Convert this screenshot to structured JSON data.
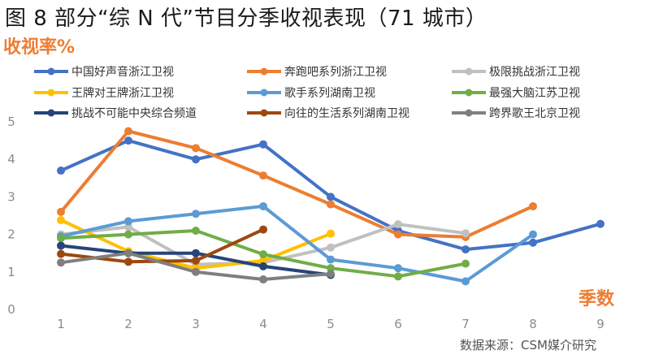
{
  "page": {
    "title": "图 8 部分“综 N 代”节目分季收视表现（71 城市）",
    "source": "数据来源：CSM媒介研究"
  },
  "chart_data": {
    "type": "line",
    "ylabel": "收视率%",
    "xlabel": "季数",
    "x": [
      1,
      2,
      3,
      4,
      5,
      6,
      7,
      8,
      9
    ],
    "ylim": [
      0,
      5
    ],
    "yticks": [
      0,
      1,
      2,
      3,
      4,
      5
    ],
    "grid": false,
    "legend_position": "top",
    "series": [
      {
        "name": "中国好声音浙江卫视",
        "color": "#4472c4",
        "x": [
          1,
          2,
          3,
          4,
          5,
          6,
          7,
          8,
          9
        ],
        "values": [
          3.7,
          4.5,
          4.0,
          4.4,
          3.0,
          2.1,
          1.6,
          1.78,
          2.28
        ]
      },
      {
        "name": "奔跑吧系列浙江卫视",
        "color": "#ed7d31",
        "x": [
          1,
          2,
          3,
          4,
          5,
          6,
          7,
          8
        ],
        "values": [
          2.6,
          4.75,
          4.3,
          3.57,
          2.8,
          2.0,
          1.93,
          2.75
        ]
      },
      {
        "name": "极限挑战浙江卫视",
        "color": "#c0c0c0",
        "x": [
          1,
          2,
          3,
          4,
          5,
          6,
          7
        ],
        "values": [
          2.0,
          2.2,
          1.2,
          1.25,
          1.65,
          2.27,
          2.03
        ]
      },
      {
        "name": "王牌对王牌浙江卫视",
        "color": "#ffc000",
        "x": [
          1,
          2,
          3,
          4,
          5
        ],
        "values": [
          2.38,
          1.55,
          1.1,
          1.3,
          2.02
        ]
      },
      {
        "name": "歌手系列湖南卫视",
        "color": "#5b9bd5",
        "x": [
          1,
          2,
          3,
          4,
          5,
          6,
          7,
          8
        ],
        "values": [
          1.95,
          2.35,
          2.55,
          2.75,
          1.33,
          1.1,
          0.75,
          2.0
        ]
      },
      {
        "name": "最强大脑江苏卫视",
        "color": "#70ad47",
        "x": [
          1,
          2,
          3,
          4,
          5,
          6,
          7
        ],
        "values": [
          1.9,
          2.0,
          2.1,
          1.47,
          1.1,
          0.88,
          1.22
        ]
      },
      {
        "name": "挑战不可能中央综合频道",
        "color": "#264478",
        "x": [
          1,
          2,
          3,
          4,
          5
        ],
        "values": [
          1.7,
          1.5,
          1.5,
          1.15,
          0.92
        ]
      },
      {
        "name": "向往的生活系列湖南卫视",
        "color": "#9e480e",
        "x": [
          1,
          2,
          3,
          4
        ],
        "values": [
          1.48,
          1.27,
          1.3,
          2.13
        ]
      },
      {
        "name": "跨界歌王北京卫视",
        "color": "#7f7f7f",
        "x": [
          1,
          2,
          3,
          4,
          5
        ],
        "values": [
          1.25,
          1.5,
          1.0,
          0.8,
          0.95
        ]
      }
    ]
  }
}
